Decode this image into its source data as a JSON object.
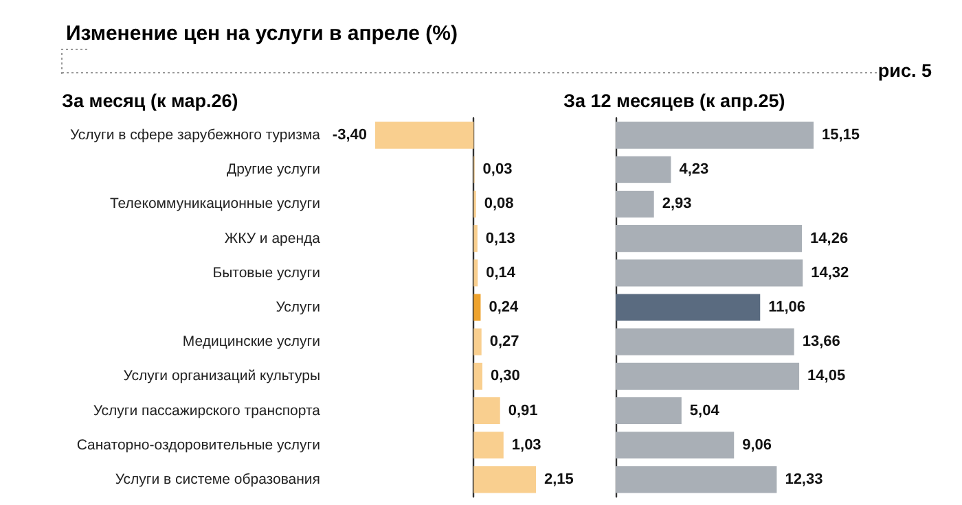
{
  "chart_data": [
    {
      "type": "bar",
      "orientation": "horizontal",
      "title": "Изменение цен на услуги в апреле (%)",
      "subtitle": "За месяц (к мар.26)",
      "annotations": [
        "рис. 5"
      ],
      "tick_labels": "y",
      "categories": [
        "Услуги в сфере зарубежного туризма",
        "Другие услуги",
        "Телекоммуникационные услуги",
        "ЖКУ и аренда",
        "Бытовые услуги",
        "Услуги",
        "Медицинские услуги",
        "Услуги организаций культуры",
        "Услуги пассажирского транспорта",
        "Санаторно-оздоровительные услуги",
        "Услуги в системе образования"
      ],
      "values": [
        -3.4,
        0.03,
        0.08,
        0.13,
        0.14,
        0.24,
        0.27,
        0.3,
        0.91,
        1.03,
        2.15
      ],
      "value_labels": [
        "-3,40",
        "0,03",
        "0,08",
        "0,13",
        "0,14",
        "0,24",
        "0,27",
        "0,30",
        "0,91",
        "1,03",
        "2,15"
      ],
      "colors": [
        "#f9cf8f",
        "#f9cf8f",
        "#f9cf8f",
        "#f9cf8f",
        "#f9cf8f",
        "#eea32e",
        "#f9cf8f",
        "#f9cf8f",
        "#f9cf8f",
        "#f9cf8f",
        "#f9cf8f"
      ]
    },
    {
      "type": "bar",
      "orientation": "horizontal",
      "title": "За 12 месяцев (к апр.25)",
      "tick_labels": false,
      "categories": [
        null,
        null,
        null,
        null,
        null,
        null,
        null,
        null,
        null,
        null,
        null
      ],
      "values": [
        15.15,
        4.23,
        2.93,
        14.26,
        14.32,
        11.06,
        13.66,
        14.05,
        5.04,
        9.06,
        12.33
      ],
      "value_labels": [
        "15,15",
        "4,23",
        "2,93",
        "14,26",
        "14,32",
        "11,06",
        "13,66",
        "14,05",
        "5,04",
        "9,06",
        "12,33"
      ],
      "colors": [
        "#a9afb6",
        "#a9afb6",
        "#a9afb6",
        "#a9afb6",
        "#a9afb6",
        "#5a6b80",
        "#a9afb6",
        "#a9afb6",
        "#a9afb6",
        "#a9afb6",
        "#a9afb6"
      ]
    }
  ]
}
